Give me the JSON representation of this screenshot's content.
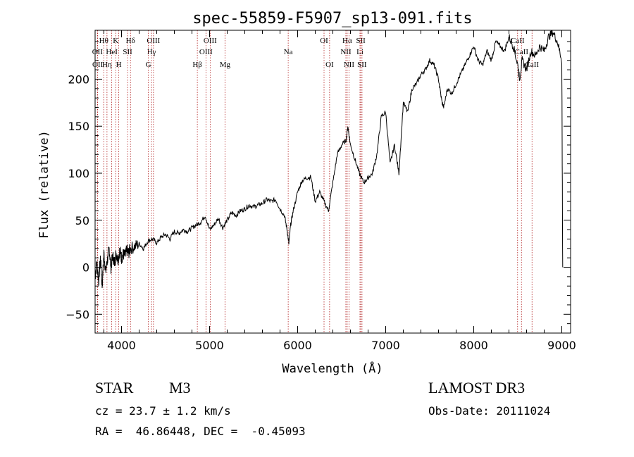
{
  "chart_data": {
    "type": "line",
    "title": "spec-55859-F5907_sp13-091.fits",
    "xlabel": "Wavelength (Å)",
    "ylabel": "Flux (relative)",
    "xlim": [
      3700,
      9100
    ],
    "ylim": [
      -70,
      252
    ],
    "xticks": [
      4000,
      5000,
      6000,
      7000,
      8000,
      9000
    ],
    "xtick_labels": [
      "4000",
      "5000",
      "6000",
      "7000",
      "8000",
      "9000"
    ],
    "yticks": [
      -50,
      0,
      50,
      100,
      150,
      200
    ],
    "ytick_labels": [
      "−50",
      "0",
      "50",
      "100",
      "150",
      "200"
    ],
    "series": [
      {
        "name": "spectrum",
        "x": [
          3700,
          3720,
          3740,
          3760,
          3780,
          3800,
          3820,
          3840,
          3860,
          3880,
          3900,
          3920,
          3940,
          3960,
          3980,
          4000,
          4020,
          4040,
          4060,
          4080,
          4100,
          4150,
          4200,
          4250,
          4300,
          4350,
          4400,
          4450,
          4500,
          4550,
          4600,
          4650,
          4700,
          4750,
          4800,
          4850,
          4900,
          4950,
          5000,
          5050,
          5100,
          5150,
          5200,
          5250,
          5300,
          5350,
          5400,
          5450,
          5500,
          5550,
          5600,
          5650,
          5700,
          5750,
          5800,
          5850,
          5880,
          5900,
          5920,
          5950,
          6000,
          6050,
          6100,
          6150,
          6200,
          6250,
          6300,
          6350,
          6400,
          6450,
          6500,
          6550,
          6570,
          6600,
          6650,
          6700,
          6750,
          6800,
          6850,
          6900,
          6950,
          7000,
          7050,
          7100,
          7150,
          7200,
          7250,
          7300,
          7350,
          7400,
          7450,
          7500,
          7550,
          7600,
          7640,
          7660,
          7700,
          7750,
          7800,
          7850,
          7900,
          7950,
          8000,
          8050,
          8100,
          8150,
          8200,
          8250,
          8300,
          8350,
          8400,
          8450,
          8500,
          8520,
          8550,
          8600,
          8650,
          8700,
          8750,
          8800,
          8850,
          8900,
          8950,
          9000,
          9010
        ],
        "y": [
          -10,
          5,
          -15,
          10,
          -20,
          15,
          -5,
          8,
          20,
          0,
          12,
          5,
          15,
          8,
          18,
          10,
          14,
          12,
          18,
          15,
          20,
          22,
          25,
          20,
          28,
          30,
          26,
          32,
          35,
          30,
          38,
          36,
          40,
          38,
          42,
          45,
          48,
          55,
          40,
          45,
          52,
          42,
          50,
          58,
          55,
          60,
          62,
          66,
          64,
          66,
          68,
          72,
          70,
          72,
          62,
          55,
          40,
          25,
          45,
          60,
          80,
          92,
          95,
          96,
          70,
          80,
          70,
          60,
          90,
          120,
          130,
          135,
          150,
          130,
          115,
          100,
          90,
          95,
          100,
          120,
          160,
          165,
          110,
          130,
          100,
          175,
          165,
          190,
          195,
          205,
          210,
          220,
          215,
          200,
          175,
          170,
          190,
          185,
          195,
          205,
          215,
          225,
          235,
          220,
          215,
          230,
          220,
          240,
          235,
          230,
          245,
          235,
          215,
          200,
          220,
          210,
          230,
          225,
          235,
          230,
          245,
          250,
          240,
          220,
          0
        ]
      }
    ],
    "lines": [
      {
        "label": "Hθ",
        "x": 3798,
        "row": 0
      },
      {
        "label": "OII",
        "x": 3727,
        "row": 1
      },
      {
        "label": "OII",
        "x": 3729,
        "row": 2
      },
      {
        "label": "Hη",
        "x": 3835,
        "row": 2
      },
      {
        "label": "HeI",
        "x": 3889,
        "row": 1
      },
      {
        "label": "K",
        "x": 3934,
        "row": 0
      },
      {
        "label": "H",
        "x": 3969,
        "row": 2
      },
      {
        "label": "SII",
        "x": 4069,
        "row": 1
      },
      {
        "label": "Hδ",
        "x": 4102,
        "row": 0
      },
      {
        "label": "OIII",
        "x": 4363,
        "row": 0
      },
      {
        "label": "Hγ",
        "x": 4341,
        "row": 1
      },
      {
        "label": "G",
        "x": 4305,
        "row": 2
      },
      {
        "label": "Hβ",
        "x": 4861,
        "row": 2
      },
      {
        "label": "OIII",
        "x": 5007,
        "row": 0
      },
      {
        "label": "OIII",
        "x": 4959,
        "row": 1
      },
      {
        "label": "Mg",
        "x": 5175,
        "row": 2
      },
      {
        "label": "Na",
        "x": 5893,
        "row": 1
      },
      {
        "label": "OI",
        "x": 6300,
        "row": 0
      },
      {
        "label": "OI",
        "x": 6363,
        "row": 2
      },
      {
        "label": "Hα",
        "x": 6563,
        "row": 0
      },
      {
        "label": "NII",
        "x": 6548,
        "row": 1
      },
      {
        "label": "NII",
        "x": 6583,
        "row": 2
      },
      {
        "label": "SII",
        "x": 6717,
        "row": 0
      },
      {
        "label": "Li",
        "x": 6708,
        "row": 1
      },
      {
        "label": "SII",
        "x": 6731,
        "row": 2
      },
      {
        "label": "CaII",
        "x": 8498,
        "row": 0
      },
      {
        "label": "CaII",
        "x": 8542,
        "row": 1
      },
      {
        "label": "CaII",
        "x": 8662,
        "row": 2
      }
    ]
  },
  "info": {
    "object_class": "STAR",
    "subclass": "M3",
    "survey": "LAMOST DR3",
    "cz": "cz = 23.7 ± 1.2 km/s",
    "obs_date": "Obs-Date: 20111024",
    "coords": "RA =  46.86448, DEC =  -0.45093"
  }
}
